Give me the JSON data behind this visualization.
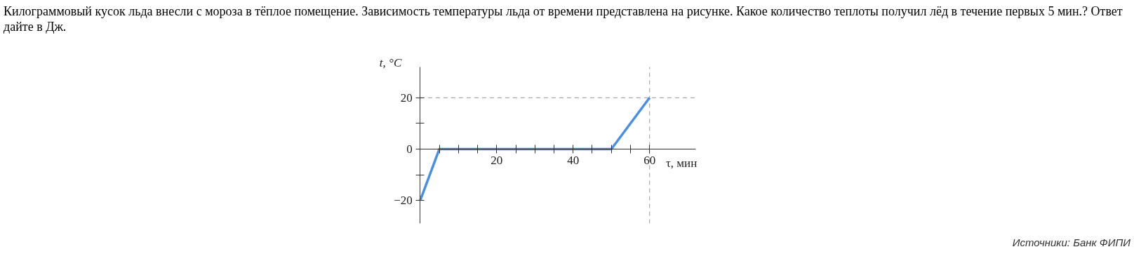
{
  "chart_data": {
    "type": "line",
    "title": "Килограммовый кусок льда внесли с мороза в тёплое помещение. Зависимость температуры льда от времени представлена на рисунке. Какое количество теплоты получил лёд в течение первых 5 мин.? Ответ дайте в Дж.",
    "xlabel": "τ, мин",
    "ylabel": "t, °C",
    "x": [
      0,
      5,
      50,
      60
    ],
    "series": [
      {
        "color": "#4a90e2",
        "values": [
          -20,
          0,
          0,
          20
        ]
      }
    ],
    "xlim": [
      0,
      72
    ],
    "ylim": [
      -29,
      32
    ],
    "xticks": [
      {
        "value": 5,
        "label": null
      },
      {
        "value": 10,
        "label": null
      },
      {
        "value": 15,
        "label": null
      },
      20,
      {
        "value": 25,
        "label": null
      },
      {
        "value": 30,
        "label": null
      },
      {
        "value": 35,
        "label": null
      },
      40,
      {
        "value": 45,
        "label": null
      },
      {
        "value": 50,
        "label": null
      },
      {
        "value": 55,
        "label": null
      },
      60
    ],
    "yticks": [
      -20,
      {
        "value": -10,
        "label": null
      },
      0,
      {
        "value": 10,
        "label": null
      },
      20
    ],
    "ref_lines": [
      {
        "axis": "y",
        "value": 20,
        "color": "#aaaaaa",
        "line_style": "dashed"
      },
      {
        "axis": "x",
        "value": 60,
        "color": "#aaaaaa",
        "line_style": "dashed"
      }
    ],
    "grid": false,
    "marker": "none",
    "line_style": "solid",
    "annotations": [
      "Источники: Банк ФИПИ"
    ]
  }
}
